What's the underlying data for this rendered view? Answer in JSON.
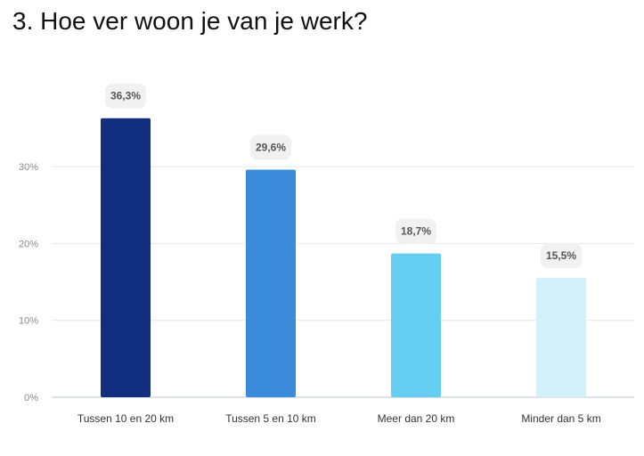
{
  "title": "3. Hoe ver woon je van je werk?",
  "chart_data": {
    "type": "bar",
    "categories": [
      "Tussen 10 en 20 km",
      "Tussen 5 en 10 km",
      "Meer dan 20 km",
      "Minder dan 5 km"
    ],
    "values": [
      36.3,
      29.6,
      18.7,
      15.5
    ],
    "value_labels": [
      "36,3%",
      "29,6%",
      "18,7%",
      "15,5%"
    ],
    "unit": "%",
    "colors": [
      "#122e80",
      "#3a8bd9",
      "#66cef0",
      "#d3f1f9"
    ],
    "ylim": [
      0,
      40
    ],
    "yticks": [
      0,
      10,
      20,
      30
    ],
    "ytick_labels": [
      "0%",
      "10%",
      "20%",
      "30%"
    ],
    "grid": true
  }
}
